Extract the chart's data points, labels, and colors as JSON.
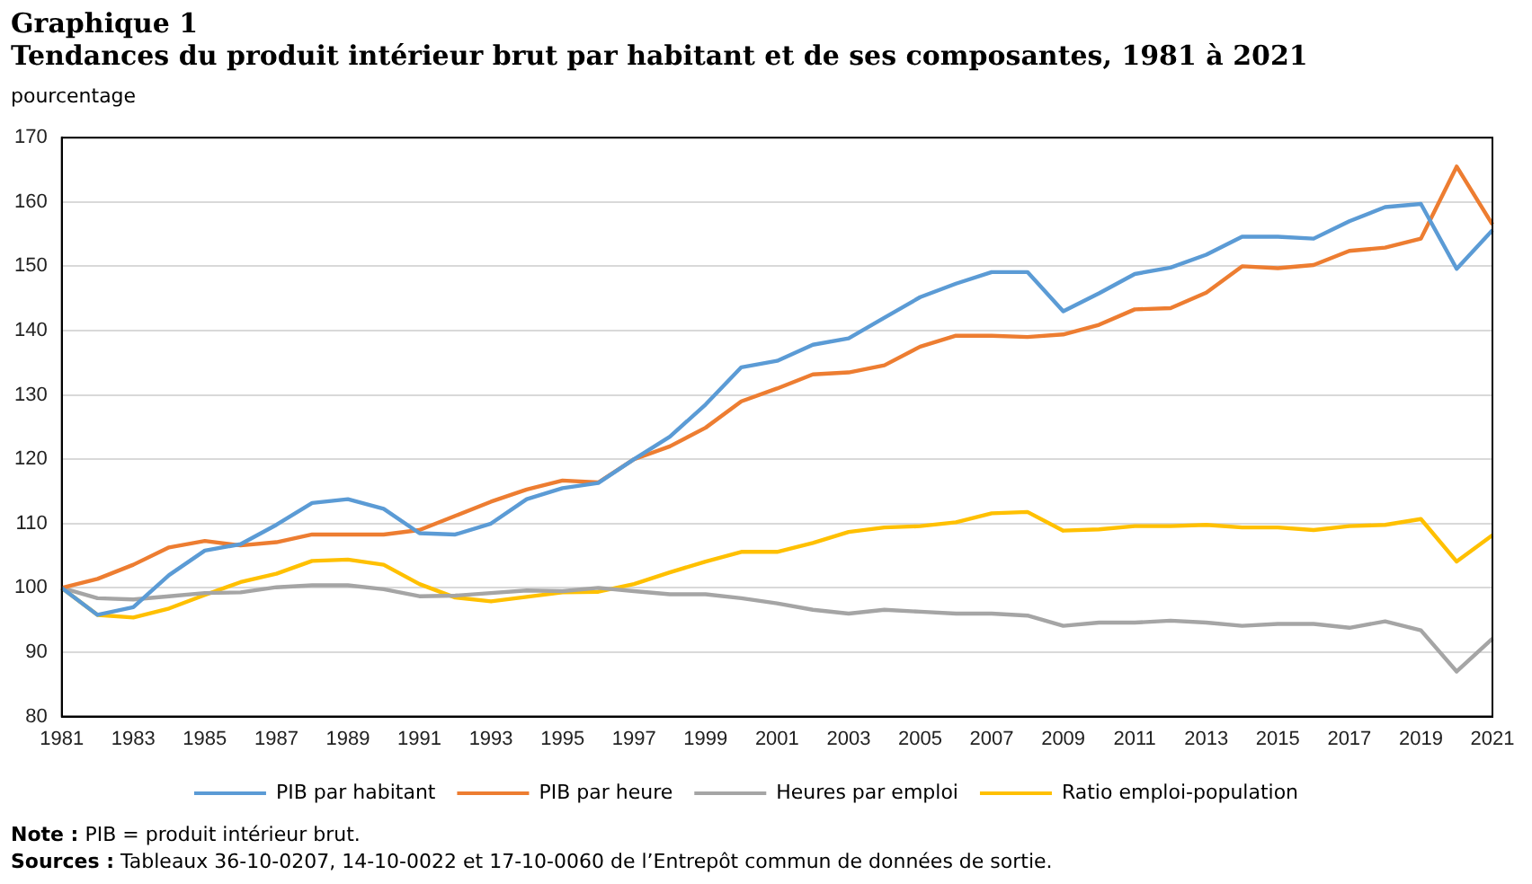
{
  "chart_data": {
    "type": "line",
    "title": "Graphique 1",
    "subtitle": "Tendances du produit intérieur brut par habitant et de ses composantes, 1981 à 2021",
    "ylabel": "pourcentage",
    "categories": [
      "1981",
      null,
      "1983",
      null,
      "1985",
      null,
      "1987",
      null,
      "1989",
      null,
      "1991",
      null,
      "1993",
      null,
      "1995",
      null,
      "1997",
      null,
      "1999",
      null,
      "2001",
      null,
      "2003",
      null,
      "2005",
      null,
      "2007",
      null,
      "2009",
      null,
      "2011",
      null,
      "2013",
      null,
      "2015",
      null,
      "2017",
      null,
      "2019",
      null,
      "2021"
    ],
    "series": [
      {
        "name": "PIB par habitant",
        "color": "#5b9bd5",
        "values": [
          100,
          95.8,
          97,
          102,
          105.8,
          106.8,
          109.8,
          113.2,
          113.8,
          112.3,
          108.5,
          108.3,
          110,
          113.8,
          115.5,
          116.3,
          120,
          123.5,
          128.5,
          134.3,
          135.3,
          137.8,
          138.8,
          142,
          145.2,
          147.3,
          149.1,
          149.1,
          143,
          145.8,
          148.8,
          149.8,
          151.8,
          154.6,
          154.6,
          154.3,
          157,
          159.2,
          159.7,
          149.6,
          155.6
        ]
      },
      {
        "name": "PIB par heure",
        "color": "#ed7d31",
        "values": [
          100,
          101.4,
          103.6,
          106.3,
          107.3,
          106.6,
          107.1,
          108.3,
          108.3,
          108.3,
          109,
          111.2,
          113.4,
          115.3,
          116.7,
          116.4,
          120,
          122,
          124.9,
          129,
          131,
          133.2,
          133.5,
          134.6,
          137.5,
          139.2,
          139.2,
          139,
          139.4,
          140.9,
          143.3,
          143.5,
          145.9,
          150,
          149.7,
          150.2,
          152.4,
          152.9,
          154.3,
          165.5,
          156.5
        ]
      },
      {
        "name": "Heures par emploi",
        "color": "#a5a5a5",
        "values": [
          100,
          98.4,
          98.2,
          98.7,
          99.2,
          99.3,
          100.1,
          100.4,
          100.4,
          99.8,
          98.7,
          98.8,
          99.2,
          99.6,
          99.5,
          100,
          99.5,
          99,
          99,
          98.4,
          97.6,
          96.6,
          96,
          96.6,
          96.3,
          96,
          96,
          95.7,
          94.1,
          94.6,
          94.6,
          94.9,
          94.6,
          94.1,
          94.4,
          94.4,
          93.8,
          94.8,
          93.4,
          87,
          92.1
        ]
      },
      {
        "name": "Ratio emploi-population",
        "color": "#ffc000",
        "values": [
          100,
          95.8,
          95.4,
          96.8,
          98.9,
          100.9,
          102.2,
          104.2,
          104.4,
          103.6,
          100.6,
          98.5,
          97.9,
          98.6,
          99.3,
          99.4,
          100.6,
          102.4,
          104.1,
          105.6,
          105.6,
          107,
          108.7,
          109.4,
          109.6,
          110.2,
          111.6,
          111.8,
          108.9,
          109.1,
          109.6,
          109.6,
          109.8,
          109.4,
          109.4,
          109,
          109.6,
          109.8,
          110.7,
          104.1,
          108.2
        ]
      }
    ],
    "ylim": [
      80,
      170
    ],
    "yticks": [
      80,
      90,
      100,
      110,
      120,
      130,
      140,
      150,
      160,
      170
    ],
    "grid": "y",
    "legend": "bottom",
    "marker": "none",
    "line_style": "solid",
    "annotations": [
      "Note : PIB = produit intérieur brut.",
      "Sources : Tableaux 36-10-0207, 14-10-0022 et 17-10-0060 de l’Entrepôt commun de données de sortie."
    ]
  }
}
